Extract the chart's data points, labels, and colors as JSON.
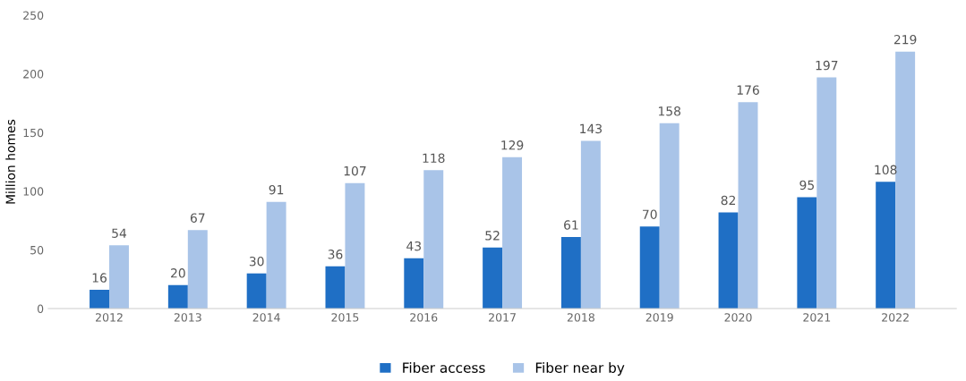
{
  "chart_data": {
    "type": "bar",
    "ylabel": "Million homes",
    "categories": [
      "2012",
      "2013",
      "2014",
      "2015",
      "2016",
      "2017",
      "2018",
      "2019",
      "2020",
      "2021",
      "2022"
    ],
    "series": [
      {
        "name": "Fiber access",
        "color": "#1f6fc5",
        "values": [
          16,
          20,
          30,
          36,
          43,
          52,
          61,
          70,
          82,
          95,
          108
        ]
      },
      {
        "name": "Fiber near by",
        "color": "#a9c4e8",
        "values": [
          54,
          67,
          91,
          107,
          118,
          129,
          143,
          158,
          176,
          197,
          219
        ]
      }
    ],
    "ylim": [
      0,
      250
    ],
    "yticks": [
      0,
      50,
      100,
      150,
      200,
      250
    ],
    "grid": false,
    "legend": "bottom",
    "data_labels": true
  }
}
